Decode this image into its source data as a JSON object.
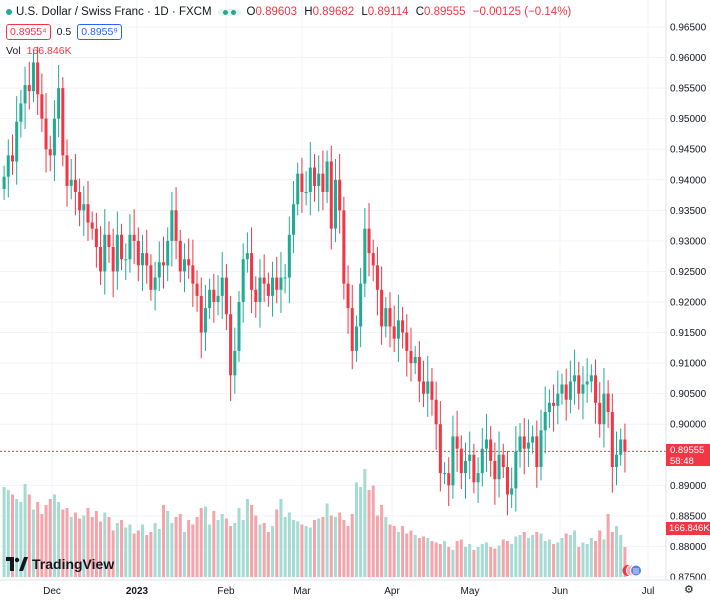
{
  "header": {
    "symbol_title": "U.S. Dollar / Swiss Franc · 1D · FXCM",
    "open_label": "O",
    "open": "0.89603",
    "high_label": "H",
    "high": "0.89682",
    "low_label": "L",
    "low": "0.89114",
    "close_label": "C",
    "close": "0.89555",
    "change": "−0.00125 (−0.14%)",
    "sell_price": "0.8955⁴",
    "spread": "0.5",
    "buy_price": "0.8955⁹",
    "volume_label": "Vol",
    "volume_value": "166.846K"
  },
  "branding": {
    "logo_text": "TradingView"
  },
  "price_label": {
    "price": "0.89555",
    "countdown": "58:48"
  },
  "volume_label_tag": "166.846K",
  "colors": {
    "up": "#22ab94",
    "down": "#f23645",
    "vol_up": "#a6dbd3",
    "vol_down": "#f5a5a9",
    "grid": "#f0f3fa"
  },
  "chart_data": {
    "type": "candlestick",
    "title": "U.S. Dollar / Swiss Franc · 1D · FXCM",
    "y_axis": {
      "ticks": [
        "0.96500",
        "0.96000",
        "0.95500",
        "0.95000",
        "0.94500",
        "0.94000",
        "0.93500",
        "0.93000",
        "0.92500",
        "0.92000",
        "0.91500",
        "0.91000",
        "0.90500",
        "0.90000",
        "0.89500",
        "0.89000",
        "0.88500",
        "0.88000",
        "0.87500"
      ],
      "range": [
        0.874,
        0.967
      ]
    },
    "x_axis": {
      "labels": [
        "Dec",
        "2023",
        "Feb",
        "Mar",
        "Apr",
        "May",
        "Jun",
        "Jul"
      ]
    },
    "grid": true,
    "candles_close": [
      0.9405,
      0.944,
      0.943,
      0.9495,
      0.9525,
      0.9555,
      0.9545,
      0.9592,
      0.954,
      0.95,
      0.945,
      0.944,
      0.95,
      0.955,
      0.944,
      0.939,
      0.94,
      0.938,
      0.935,
      0.936,
      0.933,
      0.932,
      0.929,
      0.925,
      0.931,
      0.929,
      0.925,
      0.931,
      0.927,
      0.927,
      0.931,
      0.93,
      0.926,
      0.928,
      0.926,
      0.922,
      0.924,
      0.9265,
      0.926,
      0.93,
      0.935,
      0.93,
      0.925,
      0.927,
      0.926,
      0.923,
      0.921,
      0.915,
      0.919,
      0.922,
      0.92,
      0.921,
      0.924,
      0.918,
      0.908,
      0.912,
      0.92,
      0.927,
      0.928,
      0.922,
      0.92,
      0.924,
      0.923,
      0.921,
      0.924,
      0.922,
      0.924,
      0.924,
      0.931,
      0.936,
      0.941,
      0.938,
      0.938,
      0.942,
      0.939,
      0.941,
      0.938,
      0.943,
      0.932,
      0.94,
      0.935,
      0.923,
      0.919,
      0.912,
      0.916,
      0.923,
      0.932,
      0.928,
      0.926,
      0.922,
      0.916,
      0.919,
      0.916,
      0.914,
      0.917,
      0.915,
      0.912,
      0.91,
      0.911,
      0.907,
      0.905,
      0.907,
      0.904,
      0.9,
      0.892,
      0.892,
      0.89,
      0.898,
      0.896,
      0.892,
      0.894,
      0.895,
      0.8905,
      0.892,
      0.896,
      0.8975,
      0.894,
      0.891,
      0.895,
      0.893,
      0.8885,
      0.8895,
      0.8955,
      0.898,
      0.896,
      0.897,
      0.898,
      0.893,
      0.899,
      0.902,
      0.9035,
      0.903,
      0.905,
      0.9065,
      0.904,
      0.907,
      0.908,
      0.905,
      0.9065,
      0.907,
      0.908,
      0.9035,
      0.9,
      0.905,
      0.902,
      0.893,
      0.895,
      0.8975,
      0.8955
    ],
    "volume_relative": [
      0.6,
      0.58,
      0.55,
      0.52,
      0.5,
      0.62,
      0.55,
      0.45,
      0.5,
      0.42,
      0.48,
      0.52,
      0.55,
      0.5,
      0.45,
      0.46,
      0.4,
      0.43,
      0.39,
      0.41,
      0.46,
      0.4,
      0.44,
      0.37,
      0.43,
      0.4,
      0.31,
      0.36,
      0.38,
      0.33,
      0.35,
      0.29,
      0.31,
      0.35,
      0.28,
      0.3,
      0.36,
      0.32,
      0.48,
      0.44,
      0.36,
      0.4,
      0.42,
      0.3,
      0.38,
      0.35,
      0.4,
      0.46,
      0.47,
      0.35,
      0.44,
      0.38,
      0.42,
      0.39,
      0.34,
      0.36,
      0.46,
      0.38,
      0.52,
      0.48,
      0.41,
      0.35,
      0.36,
      0.3,
      0.34,
      0.45,
      0.52,
      0.4,
      0.43,
      0.38,
      0.37,
      0.35,
      0.34,
      0.33,
      0.38,
      0.39,
      0.4,
      0.49,
      0.41,
      0.4,
      0.43,
      0.38,
      0.34,
      0.42,
      0.63,
      0.6,
      0.72,
      0.58,
      0.61,
      0.41,
      0.48,
      0.4,
      0.35,
      0.34,
      0.3,
      0.34,
      0.29,
      0.31,
      0.28,
      0.26,
      0.27,
      0.26,
      0.24,
      0.23,
      0.22,
      0.24,
      0.2,
      0.18,
      0.24,
      0.25,
      0.2,
      0.22,
      0.18,
      0.2,
      0.22,
      0.23,
      0.2,
      0.19,
      0.21,
      0.25,
      0.24,
      0.22,
      0.27,
      0.28,
      0.3,
      0.26,
      0.28,
      0.3,
      0.29,
      0.24,
      0.25,
      0.22,
      0.23,
      0.26,
      0.29,
      0.28,
      0.31,
      0.2,
      0.23,
      0.22,
      0.26,
      0.24,
      0.31,
      0.25,
      0.42,
      0.3,
      0.34,
      0.28
    ]
  }
}
